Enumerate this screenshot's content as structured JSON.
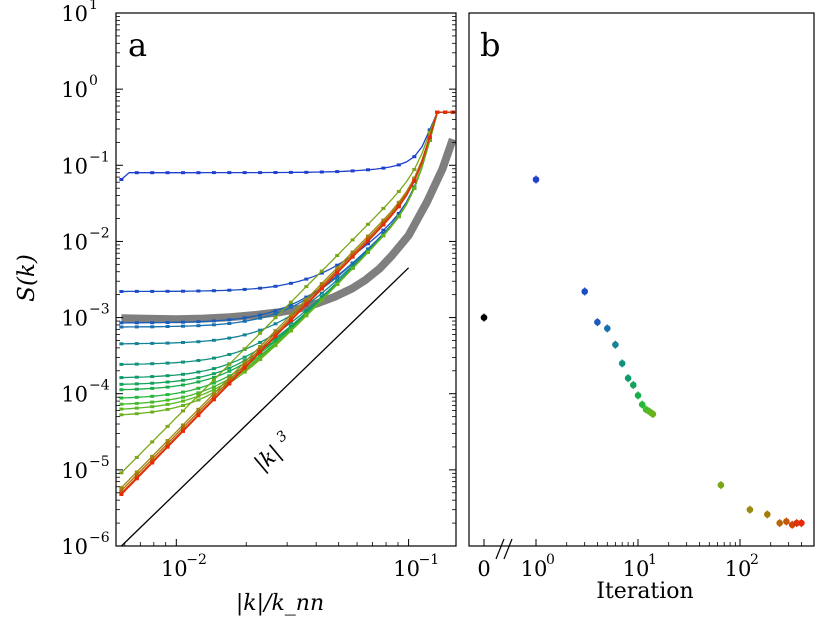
{
  "chart_data": [
    {
      "panel_label": "a",
      "type": "line",
      "x_scale": "log",
      "y_scale": "log",
      "xlabel": "|k|/k_nn",
      "ylabel": "S(k)",
      "xlim": [
        0.0055,
        0.16
      ],
      "ylim": [
        1e-06,
        10
      ],
      "x_ticks": [
        {
          "base": "10",
          "exp": "−2",
          "value": 0.01
        },
        {
          "base": "10",
          "exp": "−1",
          "value": 0.1
        }
      ],
      "y_ticks": [
        {
          "base": "10",
          "exp": "1",
          "value": 10
        },
        {
          "base": "10",
          "exp": "0",
          "value": 1
        },
        {
          "base": "10",
          "exp": "−1",
          "value": 0.1
        },
        {
          "base": "10",
          "exp": "−2",
          "value": 0.01
        },
        {
          "base": "10",
          "exp": "−3",
          "value": 0.001
        },
        {
          "base": "10",
          "exp": "−4",
          "value": 0.0001
        },
        {
          "base": "10",
          "exp": "−5",
          "value": 1e-05
        },
        {
          "base": "10",
          "exp": "−6",
          "value": 1e-06
        }
      ],
      "annotation": {
        "text": "|k|",
        "exp": "3"
      },
      "reference_line": {
        "slope": 3,
        "x": [
          0.0058,
          0.1
        ],
        "y": [
          1e-06,
          0.0045
        ],
        "color": "#000000"
      },
      "gray_band": {
        "color": "#7f7f7f",
        "x": [
          0.0058,
          0.008,
          0.01,
          0.013,
          0.017,
          0.022,
          0.028,
          0.034,
          0.04,
          0.048,
          0.057,
          0.065,
          0.075,
          0.085,
          0.1,
          0.12,
          0.14,
          0.155
        ],
        "y": [
          0.00098,
          0.00096,
          0.00095,
          0.00097,
          0.00101,
          0.00108,
          0.00118,
          0.00131,
          0.00152,
          0.00187,
          0.0024,
          0.0031,
          0.0044,
          0.0066,
          0.012,
          0.033,
          0.09,
          0.22
        ]
      },
      "series": [
        {
          "color": "#1f3fd0",
          "low": 0.065,
          "level": 0.08
        },
        {
          "color": "#1c4cc4",
          "low": 0.0022
        },
        {
          "color": "#1a5cbb",
          "low": 0.00085
        },
        {
          "color": "#1870b0",
          "low": 0.00075
        },
        {
          "color": "#148398",
          "low": 0.00045
        },
        {
          "color": "#12917f",
          "low": 0.00024
        },
        {
          "color": "#129a6c",
          "low": 0.00016
        },
        {
          "color": "#14a35a",
          "low": 0.00013
        },
        {
          "color": "#19ad4a",
          "low": 0.00011
        },
        {
          "color": "#25b63c",
          "low": 8.5e-05
        },
        {
          "color": "#44bb2a",
          "low": 7e-05
        },
        {
          "color": "#5bb722",
          "low": 6e-05
        },
        {
          "color": "#6ab11c",
          "low": 5e-05
        },
        {
          "color": "#7aa618",
          "low": 6.3e-06,
          "slope3": true
        },
        {
          "color": "#9a8a10",
          "low": 3e-06,
          "slope3": true
        },
        {
          "color": "#b56a0a",
          "low": 2.5e-06,
          "slope3": true
        },
        {
          "color": "#d04408",
          "low": 2.1e-06,
          "slope3": true
        },
        {
          "color": "#e82a08",
          "low": 1.9e-06,
          "slope3": true
        }
      ]
    },
    {
      "panel_label": "b",
      "type": "scatter",
      "x_scale": "symlog",
      "y_scale": "log",
      "xlabel": "Iteration",
      "ylim": [
        1e-06,
        10
      ],
      "x_ticks": [
        {
          "base": "0",
          "exp": "",
          "value": 0
        },
        {
          "base": "10",
          "exp": "0",
          "value": 1
        },
        {
          "base": "10",
          "exp": "1",
          "value": 10
        },
        {
          "base": "10",
          "exp": "2",
          "value": 100
        }
      ],
      "axis_break": true,
      "points": [
        {
          "x": 0,
          "y": 0.001,
          "color": "#000000"
        },
        {
          "x": 1,
          "y": 0.065,
          "color": "#1f3fd0"
        },
        {
          "x": 3,
          "y": 0.0022,
          "color": "#1c4cc4"
        },
        {
          "x": 4,
          "y": 0.00087,
          "color": "#1a5cbb"
        },
        {
          "x": 5,
          "y": 0.00072,
          "color": "#1870b0"
        },
        {
          "x": 6,
          "y": 0.00044,
          "color": "#148398"
        },
        {
          "x": 7,
          "y": 0.00025,
          "color": "#12917f"
        },
        {
          "x": 8,
          "y": 0.00016,
          "color": "#129a6c"
        },
        {
          "x": 9,
          "y": 0.00013,
          "color": "#14a35a"
        },
        {
          "x": 10,
          "y": 9.5e-05,
          "color": "#19ad4a"
        },
        {
          "x": 11,
          "y": 7.2e-05,
          "color": "#25b63c"
        },
        {
          "x": 12,
          "y": 6.2e-05,
          "color": "#44bb2a"
        },
        {
          "x": 13,
          "y": 5.8e-05,
          "color": "#5bb722"
        },
        {
          "x": 14,
          "y": 5.4e-05,
          "color": "#6ab11c"
        },
        {
          "x": 65,
          "y": 6.3e-06,
          "color": "#7aa618"
        },
        {
          "x": 125,
          "y": 3e-06,
          "color": "#9a8a10"
        },
        {
          "x": 185,
          "y": 2.6e-06,
          "color": "#a27d0e"
        },
        {
          "x": 245,
          "y": 2e-06,
          "color": "#b56a0a"
        },
        {
          "x": 285,
          "y": 2.1e-06,
          "color": "#c25a09"
        },
        {
          "x": 325,
          "y": 1.9e-06,
          "color": "#d04408"
        },
        {
          "x": 360,
          "y": 2e-06,
          "color": "#dc3408"
        },
        {
          "x": 400,
          "y": 2e-06,
          "color": "#e82a08"
        }
      ]
    }
  ]
}
